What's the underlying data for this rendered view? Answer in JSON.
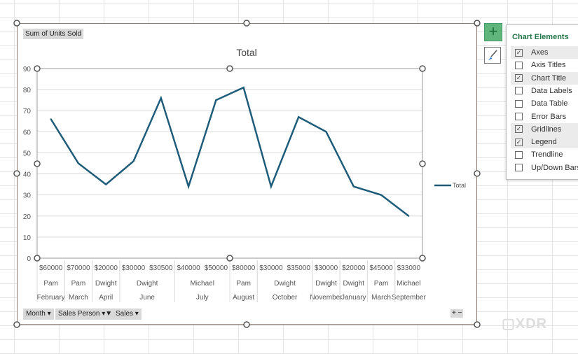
{
  "field_buttons": {
    "values": "Sum of Units Sold",
    "month": "Month",
    "sales_person": "Sales Person",
    "sales": "Sales"
  },
  "chart_elements": {
    "title": "Chart Elements",
    "items": [
      {
        "label": "Axes",
        "checked": true
      },
      {
        "label": "Axis Titles",
        "checked": false
      },
      {
        "label": "Chart Title",
        "checked": true
      },
      {
        "label": "Data Labels",
        "checked": false
      },
      {
        "label": "Data Table",
        "checked": false
      },
      {
        "label": "Error Bars",
        "checked": false
      },
      {
        "label": "Gridlines",
        "checked": true
      },
      {
        "label": "Legend",
        "checked": true
      },
      {
        "label": "Trendline",
        "checked": false
      },
      {
        "label": "Up/Down Bars",
        "checked": false
      }
    ]
  },
  "watermark": "XDR",
  "chart_data": {
    "type": "line",
    "title": "Total",
    "legend": [
      "Total"
    ],
    "legend_position": "right",
    "ylim": [
      0,
      90
    ],
    "yticks": [
      0,
      10,
      20,
      30,
      40,
      50,
      60,
      70,
      80,
      90
    ],
    "grid": true,
    "color": "#1f5c7a",
    "categories": [
      "$60000",
      "$70000",
      "$20000",
      "$30000",
      "$30500",
      "$40000",
      "$50000",
      "$80000",
      "$30000",
      "$35000",
      "$30000",
      "$20000",
      "$45000",
      "$33000"
    ],
    "values": [
      66,
      45,
      35,
      46,
      76,
      34,
      75,
      81,
      34,
      67,
      60,
      34,
      30,
      20
    ],
    "person_groups": [
      [
        "Pam",
        1
      ],
      [
        "Pam",
        1
      ],
      [
        "Dwight",
        1
      ],
      [
        "Dwight",
        2
      ],
      [
        "Michael",
        2
      ],
      [
        "Pam",
        1
      ],
      [
        "Dwight",
        2
      ],
      [
        "Dwight",
        1
      ],
      [
        "Dwight",
        1
      ],
      [
        "Pam",
        1
      ],
      [
        "Michael",
        1
      ]
    ],
    "month_groups": [
      [
        "February",
        1
      ],
      [
        "March",
        1
      ],
      [
        "April",
        1
      ],
      [
        "June",
        2
      ],
      [
        "July",
        2
      ],
      [
        "August",
        1
      ],
      [
        "October",
        2
      ],
      [
        "November",
        1
      ],
      [
        "January",
        1
      ],
      [
        "March",
        1
      ],
      [
        "September",
        1
      ]
    ]
  }
}
